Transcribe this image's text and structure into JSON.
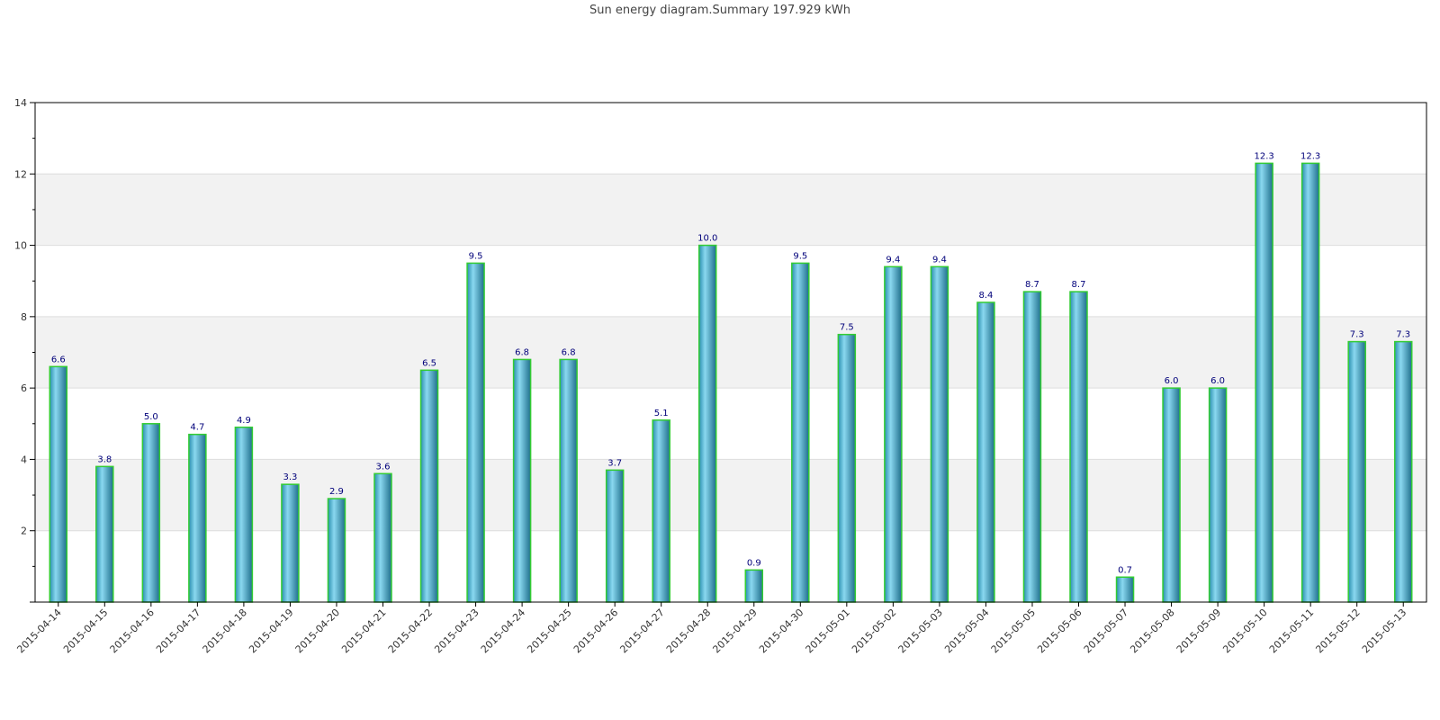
{
  "chart_data": {
    "type": "bar",
    "title": "Sun energy diagram.Summary 197.929 kWh",
    "xlabel": "",
    "ylabel": "",
    "ylim": [
      0,
      14
    ],
    "yticks": [
      2,
      4,
      6,
      8,
      10,
      12,
      14
    ],
    "grid": "horizontal alternating bands",
    "categories": [
      "2015-04-14",
      "2015-04-15",
      "2015-04-16",
      "2015-04-17",
      "2015-04-18",
      "2015-04-19",
      "2015-04-20",
      "2015-04-21",
      "2015-04-22",
      "2015-04-23",
      "2015-04-24",
      "2015-04-25",
      "2015-04-26",
      "2015-04-27",
      "2015-04-28",
      "2015-04-29",
      "2015-04-30",
      "2015-05-01",
      "2015-05-02",
      "2015-05-03",
      "2015-05-04",
      "2015-05-05",
      "2015-05-06",
      "2015-05-07",
      "2015-05-08",
      "2015-05-09",
      "2015-05-10",
      "2015-05-11",
      "2015-05-12",
      "2015-05-13"
    ],
    "values": [
      6.6,
      3.8,
      5.0,
      4.7,
      4.9,
      3.3,
      2.9,
      3.6,
      6.5,
      9.5,
      6.8,
      6.8,
      3.7,
      5.1,
      10.0,
      0.9,
      9.5,
      7.5,
      9.4,
      9.4,
      8.4,
      8.7,
      8.7,
      0.7,
      6.0,
      6.0,
      12.3,
      12.3,
      7.3,
      7.3
    ],
    "value_labels": [
      "6.6",
      "3.8",
      "5.0",
      "4.7",
      "4.9",
      "3.3",
      "2.9",
      "3.6",
      "6.5",
      "9.5",
      "6.8",
      "6.8",
      "3.7",
      "5.1",
      "10.0",
      "0.9",
      "9.5",
      "7.5",
      "9.4",
      "9.4",
      "8.4",
      "8.7",
      "8.7",
      "0.7",
      "6.0",
      "6.0",
      "12.3",
      "12.3",
      "7.3",
      "7.3"
    ],
    "colors": {
      "bar_edge": "#33cc33",
      "bar_light": "#8ad8f0",
      "bar_dark": "#1f6f8c",
      "band": "#f2f2f2",
      "label": "#00007a",
      "axis": "#000000"
    }
  }
}
